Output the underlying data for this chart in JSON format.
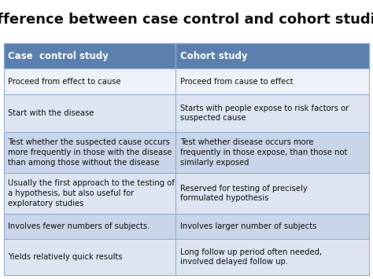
{
  "title": "Difference between case control and cohort studies",
  "title_fontsize": 13,
  "header": [
    "Case  control study",
    "Cohort study"
  ],
  "header_bg": "#5b7faf",
  "header_text_color": "#ffffff",
  "header_fontsize": 8.5,
  "rows": [
    [
      "Proceed from effect to cause",
      "Proceed from cause to effect"
    ],
    [
      "Start with the disease",
      "Starts with people expose to risk factors or\nsuspected cause"
    ],
    [
      "Test whether the suspected cause occurs\nmore frequently in those with the disease\nthan among those without the disease",
      "Test whether disease occurs more\nfrequently in those expose, than those not\nsimilarly exposed"
    ],
    [
      "Usually the first approach to the testing of\na hypothesis, but also useful for\nexploratory studies",
      "Reserved for testing of precisely\nformulated hypothesis"
    ],
    [
      "Involves fewer numbers of subjects.",
      "Involves larger number of subjects"
    ],
    [
      "Yields relatively quick results",
      "Long follow up period often needed,\ninvolved delayed follow up."
    ]
  ],
  "row_colors": [
    "#f0f3f8",
    "#dde4ef",
    "#c8d3e8",
    "#dde4ef",
    "#c8d3e8",
    "#dde4ef"
  ],
  "cell_text_color": "#111111",
  "cell_fontsize": 7.2,
  "bg_color": "#ffffff",
  "border_color": "#8da8cc",
  "col_split": 0.47,
  "row_heights_rel": [
    1.0,
    1.0,
    1.5,
    1.6,
    1.6,
    1.0,
    1.4
  ]
}
